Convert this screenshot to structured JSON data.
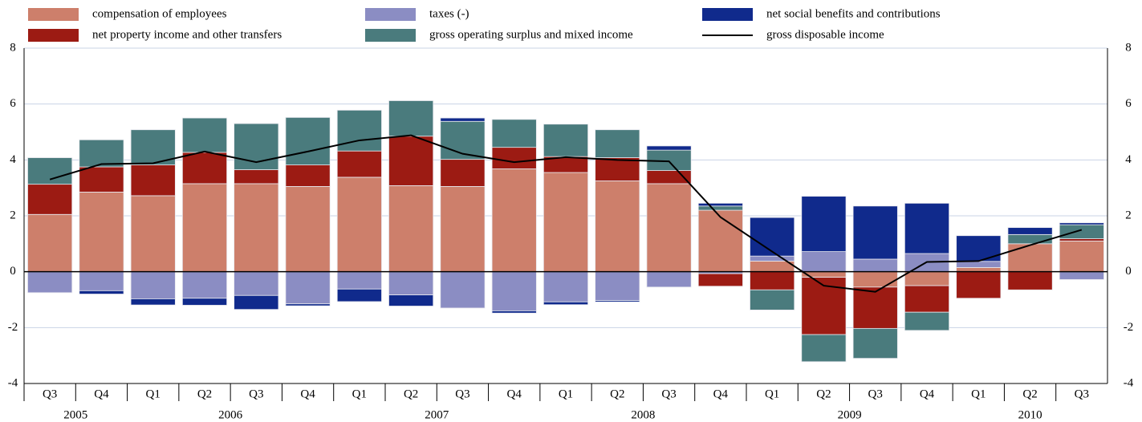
{
  "chart_data": {
    "type": "stacked_bar_line",
    "categories": [
      "Q3",
      "Q4",
      "Q1",
      "Q2",
      "Q3",
      "Q4",
      "Q1",
      "Q2",
      "Q3",
      "Q4",
      "Q1",
      "Q2",
      "Q3",
      "Q4",
      "Q1",
      "Q2",
      "Q3",
      "Q4",
      "Q1",
      "Q2",
      "Q3"
    ],
    "year_groups": [
      {
        "name": "2005",
        "size": 2
      },
      {
        "name": "2006",
        "size": 4
      },
      {
        "name": "2007",
        "size": 4
      },
      {
        "name": "2008",
        "size": 4
      },
      {
        "name": "2009",
        "size": 4
      },
      {
        "name": "2010",
        "size": 3
      }
    ],
    "series": [
      {
        "name": "compensation of employees",
        "color": "#cd7f6b",
        "values": [
          2.05,
          2.85,
          2.72,
          3.15,
          3.15,
          3.05,
          3.38,
          3.08,
          3.05,
          3.68,
          3.55,
          3.25,
          3.15,
          2.2,
          0.38,
          -0.2,
          -0.55,
          -0.5,
          0.15,
          1.0,
          1.1
        ]
      },
      {
        "name": "taxes (-)",
        "color": "#8b8dc3",
        "values": [
          -0.75,
          -0.68,
          -0.97,
          -0.95,
          -0.85,
          -1.15,
          -0.62,
          -0.83,
          -1.3,
          -1.4,
          -1.08,
          -1.03,
          -0.55,
          -0.07,
          0.18,
          0.72,
          0.45,
          0.65,
          0.22,
          0,
          -0.28
        ]
      },
      {
        "name": "net property income and other transfers",
        "color": "#9c1b13",
        "values": [
          1.08,
          0.9,
          1.1,
          1.12,
          0.5,
          0.77,
          0.94,
          1.77,
          0.97,
          0.77,
          0.57,
          0.83,
          0.47,
          -0.45,
          -0.65,
          -2.05,
          -1.48,
          -0.95,
          -0.95,
          -0.65,
          0.08
        ]
      },
      {
        "name": "gross operating surplus and mixed income",
        "color": "#4a7b7d",
        "values": [
          0.95,
          0.97,
          1.26,
          1.23,
          1.65,
          1.7,
          1.46,
          1.27,
          1.36,
          1.0,
          1.16,
          1.0,
          0.73,
          0.15,
          -0.72,
          -0.97,
          -1.07,
          -0.65,
          0,
          0.33,
          0.5
        ]
      },
      {
        "name": "net social benefits and contributions",
        "color": "#102a8c",
        "values": [
          0,
          -0.12,
          -0.22,
          -0.25,
          -0.5,
          -0.07,
          -0.45,
          -0.4,
          0.12,
          -0.08,
          -0.1,
          -0.05,
          0.15,
          0.1,
          1.38,
          1.98,
          1.9,
          1.8,
          0.92,
          0.25,
          0.07
        ]
      }
    ],
    "line": {
      "name": "gross disposable income",
      "color": "#000000",
      "values": [
        3.3,
        3.85,
        3.88,
        4.3,
        3.92,
        4.3,
        4.7,
        4.88,
        4.22,
        3.92,
        4.1,
        4.0,
        3.95,
        1.95,
        0.72,
        -0.5,
        -0.72,
        0.35,
        0.38,
        0.95,
        1.5
      ]
    },
    "ylim": [
      -4,
      8
    ],
    "yticks": [
      -4,
      -2,
      0,
      2,
      4,
      6,
      8
    ],
    "grid": true
  }
}
